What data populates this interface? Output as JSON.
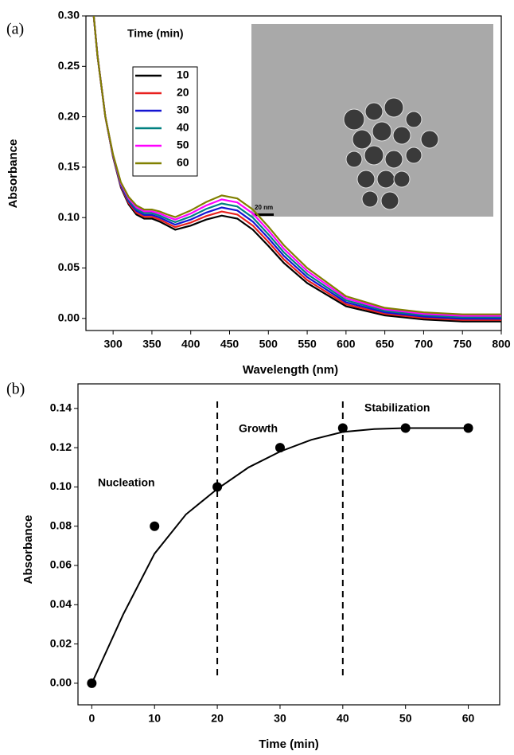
{
  "chart_data": [
    {
      "type": "line",
      "panel_label": "(a)",
      "x_label": "Wavelength (nm)",
      "y_label": "Absorbance",
      "legend_title": "Time (min)",
      "legend": "upper-left",
      "inset_scale_label": "20 nm",
      "x": [
        275,
        280,
        290,
        300,
        310,
        320,
        330,
        340,
        350,
        360,
        370,
        380,
        400,
        420,
        440,
        460,
        480,
        500,
        520,
        550,
        600,
        650,
        700,
        750,
        800
      ],
      "series": [
        {
          "name": "10",
          "color": "#000000",
          "values": [
            0.3,
            0.26,
            0.2,
            0.16,
            0.13,
            0.113,
            0.103,
            0.099,
            0.099,
            0.096,
            0.092,
            0.088,
            0.092,
            0.098,
            0.102,
            0.099,
            0.088,
            0.072,
            0.055,
            0.035,
            0.012,
            0.003,
            -0.001,
            -0.003,
            -0.003
          ]
        },
        {
          "name": "20",
          "color": "#e8201e",
          "values": [
            0.3,
            0.26,
            0.2,
            0.1605,
            0.131,
            0.1145,
            0.1048,
            0.1008,
            0.1008,
            0.098,
            0.0942,
            0.0905,
            0.095,
            0.1015,
            0.106,
            0.103,
            0.092,
            0.0758,
            0.0585,
            0.038,
            0.014,
            0.0045,
            0.0004,
            -0.0016,
            -0.0016
          ]
        },
        {
          "name": "30",
          "color": "#1414d2",
          "values": [
            0.3,
            0.26,
            0.2,
            0.161,
            0.132,
            0.116,
            0.1066,
            0.1026,
            0.1026,
            0.1,
            0.0964,
            0.093,
            0.098,
            0.105,
            0.11,
            0.107,
            0.096,
            0.0796,
            0.062,
            0.041,
            0.016,
            0.006,
            0.0018,
            -0.0002,
            -0.0002
          ]
        },
        {
          "name": "40",
          "color": "#008080",
          "values": [
            0.3,
            0.26,
            0.2,
            0.1615,
            0.133,
            0.1175,
            0.1084,
            0.1044,
            0.1044,
            0.102,
            0.0986,
            0.0955,
            0.101,
            0.1085,
            0.114,
            0.111,
            0.1,
            0.0834,
            0.0655,
            0.044,
            0.018,
            0.0075,
            0.0032,
            0.0012,
            0.0012
          ]
        },
        {
          "name": "50",
          "color": "#ff00ff",
          "values": [
            0.3,
            0.26,
            0.2,
            0.162,
            0.134,
            0.119,
            0.1102,
            0.1062,
            0.1062,
            0.104,
            0.1008,
            0.098,
            0.104,
            0.112,
            0.118,
            0.115,
            0.104,
            0.0872,
            0.069,
            0.047,
            0.02,
            0.009,
            0.0046,
            0.0026,
            0.0026
          ]
        },
        {
          "name": "60",
          "color": "#808000",
          "values": [
            0.3,
            0.26,
            0.2,
            0.1625,
            0.135,
            0.1205,
            0.112,
            0.108,
            0.108,
            0.106,
            0.103,
            0.1005,
            0.107,
            0.1155,
            0.122,
            0.119,
            0.108,
            0.091,
            0.0725,
            0.05,
            0.022,
            0.0105,
            0.006,
            0.004,
            0.004
          ]
        }
      ],
      "xlim": [
        265,
        800
      ],
      "xticks": [
        300,
        350,
        400,
        450,
        500,
        550,
        600,
        650,
        700,
        750,
        800
      ],
      "ylim": [
        -0.012,
        0.3
      ],
      "yticks": [
        {
          "value": 0,
          "label": "0.00"
        },
        {
          "value": 0.05,
          "label": "0.05"
        },
        {
          "value": 0.1,
          "label": "0.10"
        },
        {
          "value": 0.15,
          "label": "0.15"
        },
        {
          "value": 0.2,
          "label": "0.20"
        },
        {
          "value": 0.25,
          "label": "0.25"
        },
        {
          "value": 0.3,
          "label": "0.30"
        }
      ]
    },
    {
      "type": "scatter",
      "panel_label": "(b)",
      "x_label": "Time (min)",
      "y_label": "Absorbance",
      "color": "#000000",
      "x": [
        0,
        10,
        20,
        30,
        40,
        50,
        60
      ],
      "values": [
        0,
        0.08,
        0.1,
        0.12,
        0.13,
        0.13,
        0.13
      ],
      "fit": {
        "x": [
          0,
          5,
          10,
          15,
          20,
          25,
          30,
          35,
          40,
          45,
          50,
          55,
          60
        ],
        "values": [
          0,
          0.035,
          0.066,
          0.086,
          0.099,
          0.11,
          0.118,
          0.124,
          0.128,
          0.1295,
          0.13,
          0.13,
          0.13
        ]
      },
      "vlines": [
        20,
        40
      ],
      "annotations": [
        "Nucleation",
        "Growth",
        "Stabilization"
      ],
      "xlim": [
        -2.2,
        65
      ],
      "xticks": [
        0,
        10,
        20,
        30,
        40,
        50,
        60
      ],
      "ylim": [
        -0.011,
        0.1525
      ],
      "yticks": [
        {
          "value": 0,
          "label": "0.00"
        },
        {
          "value": 0.02,
          "label": "0.02"
        },
        {
          "value": 0.04,
          "label": "0.04"
        },
        {
          "value": 0.06,
          "label": "0.06"
        },
        {
          "value": 0.08,
          "label": "0.08"
        },
        {
          "value": 0.1,
          "label": "0.10"
        },
        {
          "value": 0.12,
          "label": "0.12"
        },
        {
          "value": 0.14,
          "label": "0.14"
        }
      ]
    }
  ]
}
